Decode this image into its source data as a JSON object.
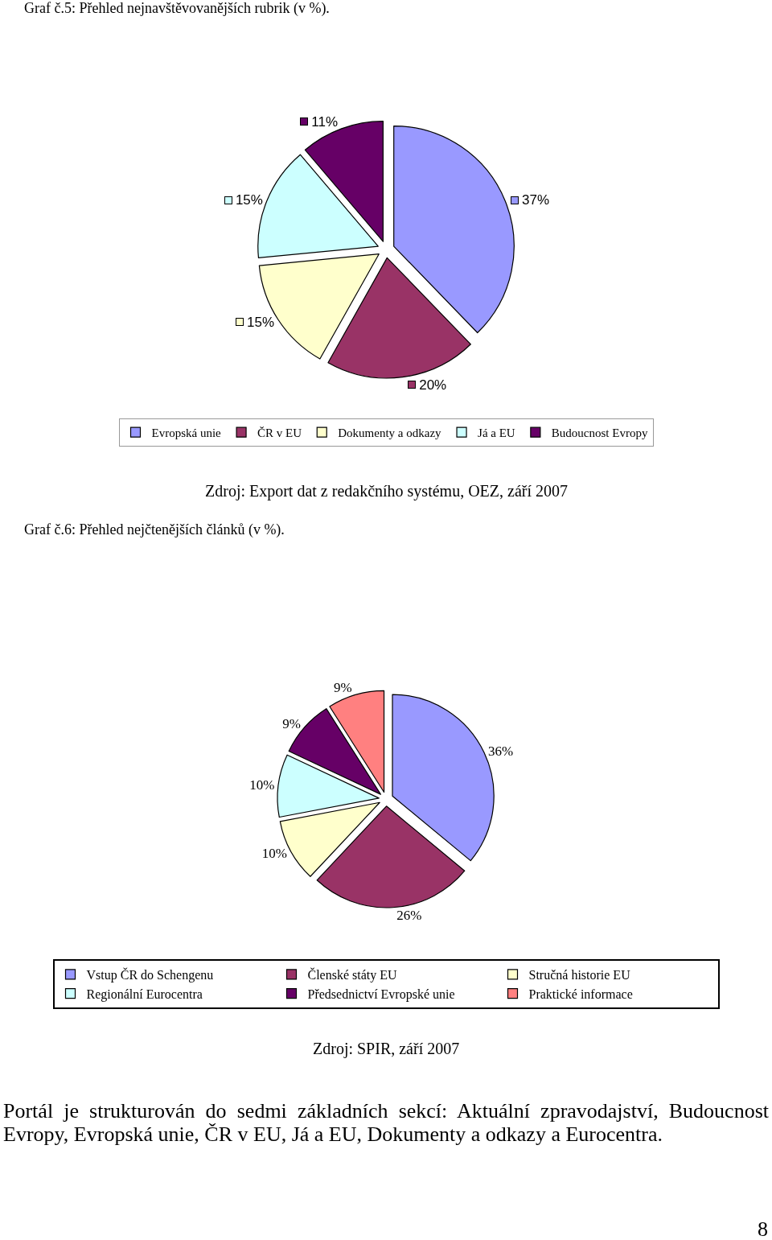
{
  "chart_data": [
    {
      "type": "pie",
      "title": "Graf č.5: Přehled nejnavštěvovanějších rubrik (v %).",
      "categories": [
        "Evropská unie",
        "ČR v EU",
        "Dokumenty a odkazy",
        "Já a EU",
        "Budoucnost Evropy"
      ],
      "values": [
        37,
        20,
        15,
        15,
        11
      ],
      "colors": [
        "#9999ff",
        "#993366",
        "#ffffcc",
        "#ccffff",
        "#660066"
      ],
      "value_labels": [
        "37%",
        "20%",
        "15%",
        "15%",
        "11%"
      ],
      "legend": "bottom",
      "annotations": [
        "Zdroj: Export dat z redakčního systému, OEZ, září 2007"
      ]
    },
    {
      "type": "pie",
      "title": "Graf č.6: Přehled nejčtenějších článků (v %).",
      "categories": [
        "Vstup ČR do Schengenu",
        "Členské státy EU",
        "Stručná historie EU",
        "Regionální Eurocentra",
        "Předsednictví Evropské unie",
        "Praktické informace"
      ],
      "values": [
        36,
        26,
        10,
        10,
        9,
        9
      ],
      "colors": [
        "#9999ff",
        "#993366",
        "#ffffcc",
        "#ccffff",
        "#660066",
        "#ff8080"
      ],
      "value_labels": [
        "36%",
        "26%",
        "10%",
        "10%",
        "9%",
        "9%"
      ],
      "legend": "bottom",
      "annotations": [
        "Zdroj: SPIR, září 2007",
        "Portál je strukturován do sedmi základních sekcí: Aktuální zpravodajství, Budoucnost Evropy, Evropská unie, ČR v EU, Já a EU, Dokumenty a odkazy a Eurocentra.",
        "8"
      ]
    }
  ]
}
